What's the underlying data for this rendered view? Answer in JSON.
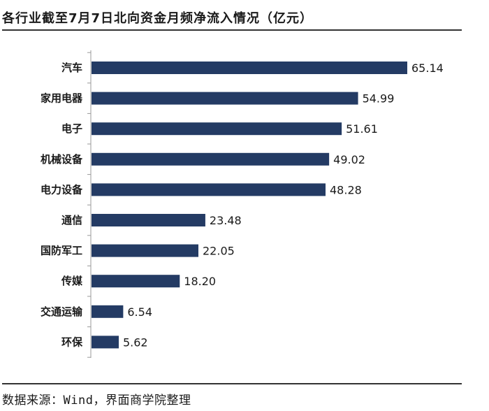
{
  "title": "各行业截至7月7日北向资金月频净流入情况（亿元）",
  "source": "数据来源：Wind，界面商学院整理",
  "colors": {
    "bar": "#243b64",
    "axis": "#999999",
    "rule": "#333333"
  },
  "chart_data": {
    "type": "bar",
    "orientation": "horizontal",
    "title": "各行业截至7月7日北向资金月频净流入情况（亿元）",
    "categories": [
      "汽车",
      "家用电器",
      "电子",
      "机械设备",
      "电力设备",
      "通信",
      "国防军工",
      "传媒",
      "交通运输",
      "环保"
    ],
    "values": [
      65.14,
      54.99,
      51.61,
      49.02,
      48.28,
      23.48,
      22.05,
      18.2,
      6.54,
      5.62
    ],
    "value_labels": [
      "65.14",
      "54.99",
      "51.61",
      "49.02",
      "48.28",
      "23.48",
      "22.05",
      "18.20",
      "6.54",
      "5.62"
    ],
    "xlim": [
      0,
      65.14
    ],
    "grid": false,
    "legend": "none"
  }
}
